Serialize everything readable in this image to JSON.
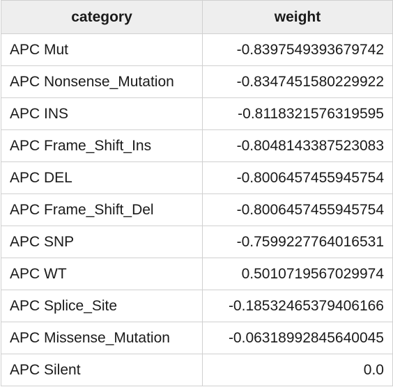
{
  "table": {
    "headers": {
      "category": "category",
      "weight": "weight"
    },
    "rows": [
      {
        "category": "APC Mut",
        "weight": "-0.8397549393679742"
      },
      {
        "category": "APC Nonsense_Mutation",
        "weight": "-0.8347451580229922"
      },
      {
        "category": "APC INS",
        "weight": "-0.8118321576319595"
      },
      {
        "category": "APC Frame_Shift_Ins",
        "weight": "-0.8048143387523083"
      },
      {
        "category": "APC DEL",
        "weight": "-0.8006457455945754"
      },
      {
        "category": "APC Frame_Shift_Del",
        "weight": "-0.8006457455945754"
      },
      {
        "category": "APC SNP",
        "weight": "-0.7599227764016531"
      },
      {
        "category": "APC WT",
        "weight": "0.5010719567029974"
      },
      {
        "category": "APC Splice_Site",
        "weight": "-0.18532465379406166"
      },
      {
        "category": "APC Missense_Mutation",
        "weight": "-0.06318992845640045"
      },
      {
        "category": "APC Silent",
        "weight": "0.0"
      }
    ]
  }
}
